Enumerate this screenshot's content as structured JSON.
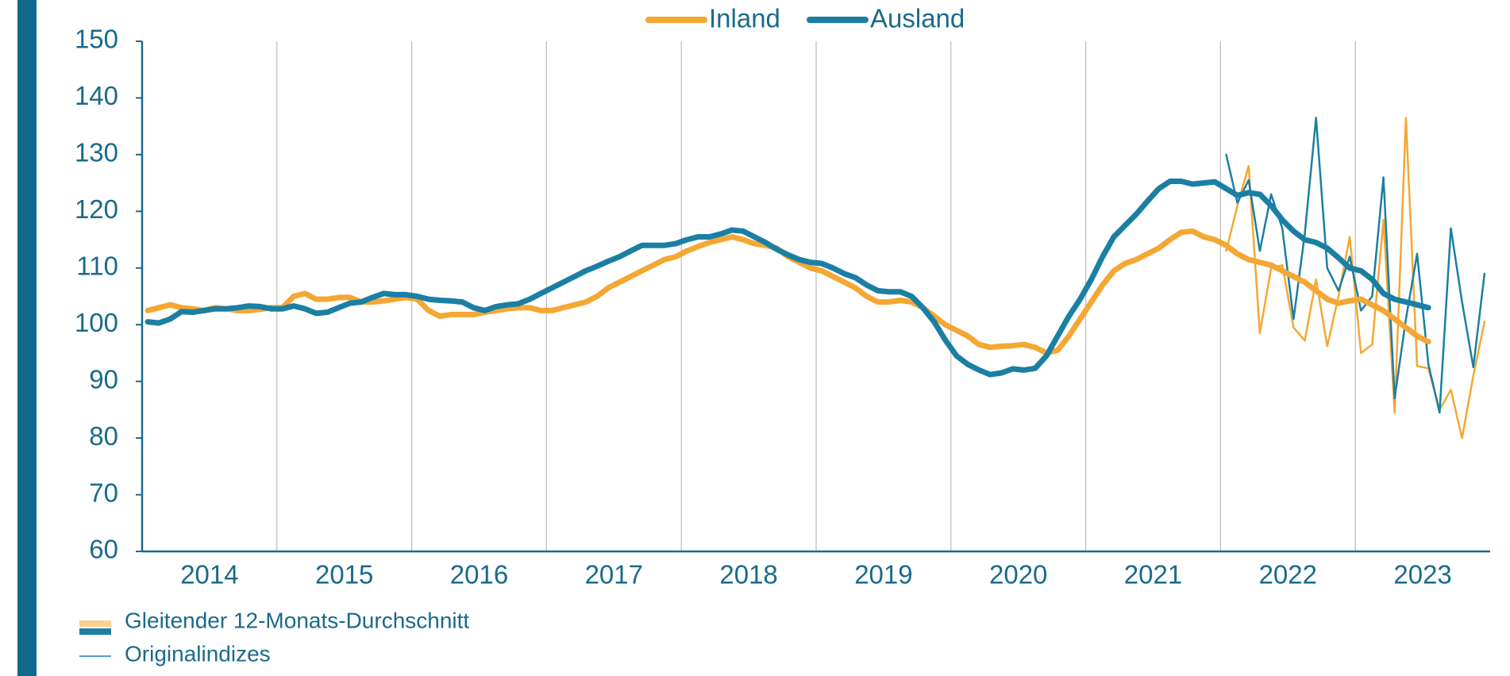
{
  "chart_data": {
    "type": "line",
    "categories": [
      null,
      null,
      null,
      null,
      null,
      null,
      "2014",
      null,
      null,
      null,
      null,
      null,
      null,
      null,
      null,
      null,
      null,
      null,
      "2015",
      null,
      null,
      null,
      null,
      null,
      null,
      null,
      null,
      null,
      null,
      null,
      "2016",
      null,
      null,
      null,
      null,
      null,
      null,
      null,
      null,
      null,
      null,
      null,
      "2017",
      null,
      null,
      null,
      null,
      null,
      null,
      null,
      null,
      null,
      null,
      null,
      "2018",
      null,
      null,
      null,
      null,
      null,
      null,
      null,
      null,
      null,
      null,
      null,
      "2019",
      null,
      null,
      null,
      null,
      null,
      null,
      null,
      null,
      null,
      null,
      null,
      "2020",
      null,
      null,
      null,
      null,
      null,
      null,
      null,
      null,
      null,
      null,
      null,
      "2021",
      null,
      null,
      null,
      null,
      null,
      null,
      null,
      null,
      null,
      null,
      null,
      "2022",
      null,
      null,
      null,
      null,
      null,
      null,
      null,
      null,
      null,
      null,
      null,
      "2023",
      null,
      null,
      null,
      null,
      null
    ],
    "ylim": [
      60,
      150
    ],
    "yticks": [
      60,
      70,
      80,
      90,
      100,
      110,
      120,
      130,
      140,
      150
    ],
    "line_styles": {
      "moving_average": "Gleitender 12-Monats-Durchschnitt",
      "original": "Originalindizes"
    },
    "series": [
      {
        "name": "Inland",
        "color": "#f5a733",
        "values": [
          102.5,
          103,
          103.5,
          103,
          102.8,
          102.5,
          103,
          102.8,
          102.5,
          102.5,
          102.7,
          103,
          103,
          105,
          105.5,
          104.5,
          104.5,
          104.8,
          104.8,
          104,
          104,
          104.2,
          104.5,
          104.8,
          104.5,
          102.5,
          101.5,
          101.8,
          101.8,
          101.8,
          102.2,
          102.5,
          102.8,
          103,
          103,
          102.5,
          102.5,
          103,
          103.5,
          104,
          105,
          106.5,
          107.5,
          108.5,
          109.5,
          110.5,
          111.5,
          112,
          113,
          113.8,
          114.5,
          115,
          115.5,
          115,
          114.3,
          114,
          113.5,
          112,
          111,
          110,
          109.5,
          108.5,
          107.5,
          106.5,
          105,
          104,
          104,
          104.3,
          104,
          103,
          101.5,
          100,
          99,
          98,
          96.5,
          96,
          96.2,
          96.3,
          96.5,
          96,
          95,
          95.5,
          98,
          101,
          104,
          107,
          109.5,
          110.8,
          111.5,
          112.5,
          113.5,
          115,
          116.3,
          116.5,
          115.5,
          115,
          114,
          112.5,
          111.5,
          111,
          110.5,
          109.5,
          108.5,
          107.5,
          106,
          104.5,
          103.8,
          104.2,
          104.5,
          103.5,
          102.5,
          101,
          99.5,
          98,
          97,
          null,
          null,
          null,
          null,
          null
        ],
        "original": [
          null,
          null,
          null,
          null,
          null,
          null,
          null,
          null,
          null,
          null,
          null,
          null,
          null,
          null,
          null,
          null,
          null,
          null,
          null,
          null,
          null,
          null,
          null,
          null,
          null,
          null,
          null,
          null,
          null,
          null,
          null,
          null,
          null,
          null,
          null,
          null,
          null,
          null,
          null,
          null,
          null,
          null,
          null,
          null,
          null,
          null,
          null,
          null,
          null,
          null,
          null,
          null,
          null,
          null,
          null,
          null,
          null,
          null,
          null,
          null,
          null,
          null,
          null,
          null,
          null,
          null,
          null,
          null,
          null,
          null,
          null,
          null,
          null,
          null,
          null,
          null,
          null,
          null,
          null,
          null,
          null,
          null,
          null,
          null,
          null,
          null,
          null,
          null,
          null,
          null,
          null,
          null,
          null,
          null,
          null,
          null,
          113,
          121,
          128,
          98.5,
          110,
          110.5,
          99.5,
          97.2,
          108,
          96.2,
          105,
          115.5,
          95,
          96.5,
          118.5,
          84.5,
          136.5,
          92.7,
          92.3,
          85,
          88.5,
          80,
          91,
          100.5
        ]
      },
      {
        "name": "Ausland",
        "color": "#1b7fa3",
        "values": [
          100.5,
          100.3,
          101,
          102.3,
          102.2,
          102.5,
          102.8,
          102.8,
          103,
          103.3,
          103.2,
          102.8,
          102.8,
          103.3,
          102.8,
          102,
          102.2,
          103,
          103.8,
          104,
          104.8,
          105.5,
          105.3,
          105.3,
          105,
          104.5,
          104.3,
          104.2,
          104,
          103,
          102.5,
          103.2,
          103.5,
          103.7,
          104.5,
          105.5,
          106.5,
          107.5,
          108.5,
          109.5,
          110.3,
          111.2,
          112,
          113,
          114,
          114,
          114,
          114.3,
          115,
          115.5,
          115.5,
          116,
          116.7,
          116.5,
          115.5,
          114.5,
          113.3,
          112.3,
          111.5,
          111,
          110.8,
          110,
          109,
          108.3,
          107,
          106,
          105.8,
          105.8,
          105,
          103,
          100.5,
          97.3,
          94.5,
          93,
          92,
          91.2,
          91.5,
          92.2,
          92,
          92.3,
          94.5,
          98,
          101.5,
          104.5,
          108,
          112,
          115.5,
          117.5,
          119.5,
          121.8,
          124,
          125.3,
          125.3,
          124.8,
          125,
          125.2,
          124,
          122.8,
          123.3,
          123,
          121,
          118.5,
          116.5,
          115,
          114.5,
          113.5,
          111.8,
          110,
          109.5,
          108,
          105.5,
          104.5,
          104,
          103.5,
          103,
          null,
          null,
          null,
          null,
          null
        ],
        "original": [
          null,
          null,
          null,
          null,
          null,
          null,
          null,
          null,
          null,
          null,
          null,
          null,
          null,
          null,
          null,
          null,
          null,
          null,
          null,
          null,
          null,
          null,
          null,
          null,
          null,
          null,
          null,
          null,
          null,
          null,
          null,
          null,
          null,
          null,
          null,
          null,
          null,
          null,
          null,
          null,
          null,
          null,
          null,
          null,
          null,
          null,
          null,
          null,
          null,
          null,
          null,
          null,
          null,
          null,
          null,
          null,
          null,
          null,
          null,
          null,
          null,
          null,
          null,
          null,
          null,
          null,
          null,
          null,
          null,
          null,
          null,
          null,
          null,
          null,
          null,
          null,
          null,
          null,
          null,
          null,
          null,
          null,
          null,
          null,
          null,
          null,
          null,
          null,
          null,
          null,
          null,
          null,
          null,
          null,
          null,
          null,
          130,
          121.5,
          125.5,
          113,
          123,
          117,
          101,
          116,
          136.5,
          110,
          106,
          112,
          102.5,
          105,
          126,
          87,
          101,
          112.5,
          93,
          84.5,
          117,
          104,
          92.5,
          109
        ]
      }
    ]
  }
}
